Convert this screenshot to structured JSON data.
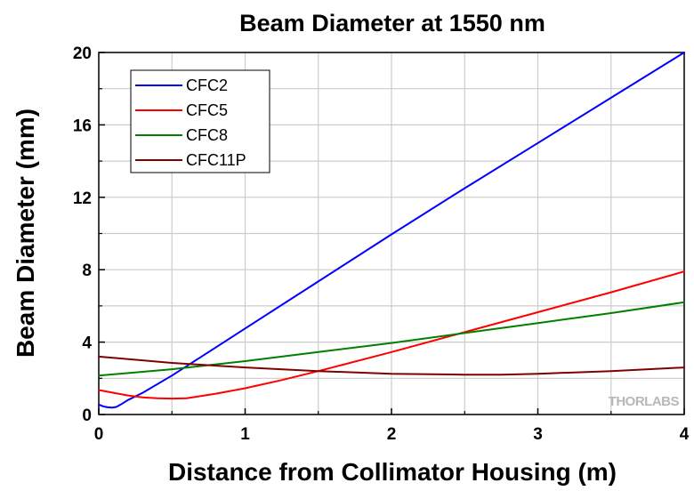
{
  "chart_data": {
    "type": "line",
    "title": "Beam Diameter at 1550 nm",
    "xlabel": "Distance from Collimator Housing (m)",
    "ylabel": "Beam Diameter (mm)",
    "xlim": [
      0,
      4
    ],
    "ylim": [
      0,
      20
    ],
    "xticks": [
      0,
      1,
      2,
      3,
      4
    ],
    "yticks": [
      0,
      4,
      8,
      12,
      16,
      20
    ],
    "xtick_labels": [
      "0",
      "1",
      "2",
      "3",
      "4"
    ],
    "ytick_labels": [
      "0",
      "4",
      "8",
      "12",
      "16",
      "20"
    ],
    "grid": true,
    "legend_position": "top-left",
    "watermark": "THORLABS",
    "series": [
      {
        "name": "CFC2",
        "color": "#0000ff",
        "x": [
          0,
          0.03,
          0.06,
          0.09,
          0.12,
          0.15,
          0.2,
          0.3,
          0.5,
          0.75,
          1,
          1.5,
          2,
          2.5,
          3,
          3.5,
          4
        ],
        "y": [
          0.55,
          0.45,
          0.4,
          0.38,
          0.42,
          0.55,
          0.8,
          1.2,
          2.15,
          3.45,
          4.75,
          7.35,
          9.95,
          12.5,
          15.0,
          17.5,
          20.0
        ]
      },
      {
        "name": "CFC5",
        "color": "#ff0000",
        "x": [
          0,
          0.1,
          0.2,
          0.3,
          0.4,
          0.5,
          0.6,
          0.8,
          1,
          1.25,
          1.5,
          2,
          2.5,
          3,
          3.5,
          4
        ],
        "y": [
          1.35,
          1.2,
          1.05,
          0.95,
          0.9,
          0.88,
          0.9,
          1.15,
          1.45,
          1.9,
          2.4,
          3.45,
          4.55,
          5.65,
          6.75,
          7.9
        ]
      },
      {
        "name": "CFC8",
        "color": "#008000",
        "x": [
          0,
          0.5,
          1,
          1.5,
          2,
          2.5,
          3,
          3.5,
          4
        ],
        "y": [
          2.15,
          2.5,
          2.95,
          3.45,
          3.95,
          4.5,
          5.05,
          5.6,
          6.2
        ]
      },
      {
        "name": "CFC11P",
        "color": "#800000",
        "x": [
          0,
          0.5,
          1,
          1.5,
          2,
          2.5,
          2.75,
          3,
          3.5,
          4
        ],
        "y": [
          3.2,
          2.85,
          2.6,
          2.4,
          2.25,
          2.2,
          2.2,
          2.25,
          2.4,
          2.6
        ]
      }
    ]
  }
}
